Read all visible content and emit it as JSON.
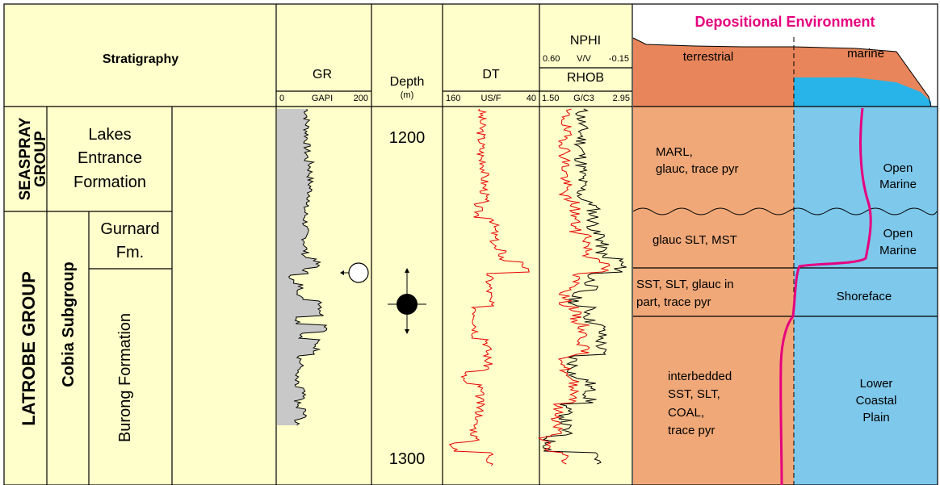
{
  "colors": {
    "panel": "#ffffcc",
    "gr_fill": "#c8c8c8",
    "red": "#e60000",
    "magenta": "#e6007e",
    "terrestrial": "#f0a878",
    "terrestrial_dark": "#e8855a",
    "marine": "#7ec8ec",
    "marine_header": "#28b4e8"
  },
  "stratigraphy": {
    "title": "Stratigraphy",
    "groups": [
      {
        "name": "SEASPRAY GROUP",
        "formations": [
          {
            "name_lines": [
              "Lakes",
              "Entrance",
              "Formation"
            ]
          }
        ]
      },
      {
        "name": "LATROBE GROUP",
        "subgroup": "Cobia Subgroup",
        "formations": [
          {
            "name_lines": [
              "Gurnard",
              "Fm."
            ]
          },
          {
            "name": "Burong Formation"
          }
        ]
      }
    ]
  },
  "tracks": {
    "gr": {
      "name": "GR",
      "unit": "GAPI",
      "min": "0",
      "max": "200"
    },
    "depth": {
      "name": "Depth",
      "unit": "(m)",
      "labels": [
        "1200",
        "1300"
      ]
    },
    "dt": {
      "name": "DT",
      "unit": "US/F",
      "min": "160",
      "max": "40"
    },
    "nphi": {
      "name": "NPHI",
      "unit": "V/V",
      "min": "0.60",
      "max": "-0.15"
    },
    "rhob": {
      "name": "RHOB",
      "unit": "G/C3",
      "min": "1.50",
      "max": "2.95"
    }
  },
  "environment": {
    "title": "Depositional Environment",
    "terrestrial": "terrestrial",
    "marine": "marine",
    "intervals": [
      {
        "lithology_lines": [
          "MARL,",
          "glauc, trace pyr"
        ],
        "environment_lines": [
          "Open",
          "Marine"
        ]
      },
      {
        "lithology_lines": [
          "glauc SLT, MST"
        ],
        "environment_lines": [
          "Open",
          "Marine"
        ]
      },
      {
        "lithology_lines": [
          "SST, SLT, glauc in",
          "part, trace pyr"
        ],
        "environment_lines": [
          "Shoreface"
        ]
      },
      {
        "lithology_lines": [
          "interbedded",
          "SST, SLT,",
          "COAL,",
          "trace pyr"
        ],
        "environment_lines": [
          "Lower",
          "Coastal",
          "Plain"
        ]
      }
    ]
  }
}
